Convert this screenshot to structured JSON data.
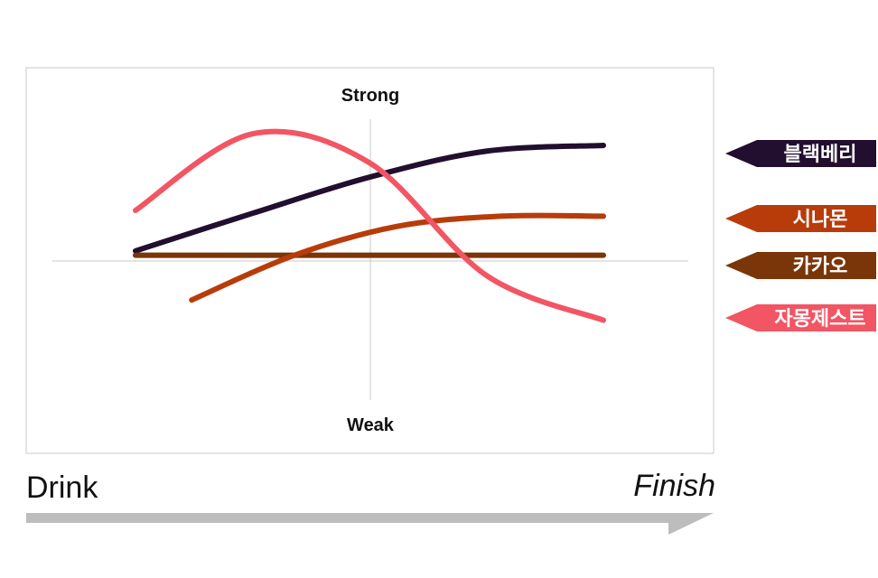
{
  "chart_data": {
    "type": "line",
    "labels": {
      "top": "Strong",
      "bottom": "Weak",
      "start": "Drink",
      "end": "Finish"
    },
    "x": [
      0,
      0.25,
      0.5,
      0.75,
      1
    ],
    "ylim": [
      -1,
      1
    ],
    "grid": false,
    "legend_position": "right",
    "series": [
      {
        "name": "블랙베리",
        "color": "#220e2e",
        "values": [
          0.07,
          0.33,
          0.58,
          0.76,
          0.8
        ]
      },
      {
        "name": "시나몬",
        "color": "#b83c0a",
        "values": [
          -0.27,
          0.04,
          0.24,
          0.31,
          0.31
        ]
      },
      {
        "name": "카카오",
        "color": "#7a3608",
        "values": [
          0.04,
          0.04,
          0.04,
          0.04,
          0.04
        ]
      },
      {
        "name": "자몽제스트",
        "color": "#f25563",
        "values": [
          0.35,
          0.88,
          0.68,
          -0.1,
          -0.41
        ]
      }
    ]
  }
}
